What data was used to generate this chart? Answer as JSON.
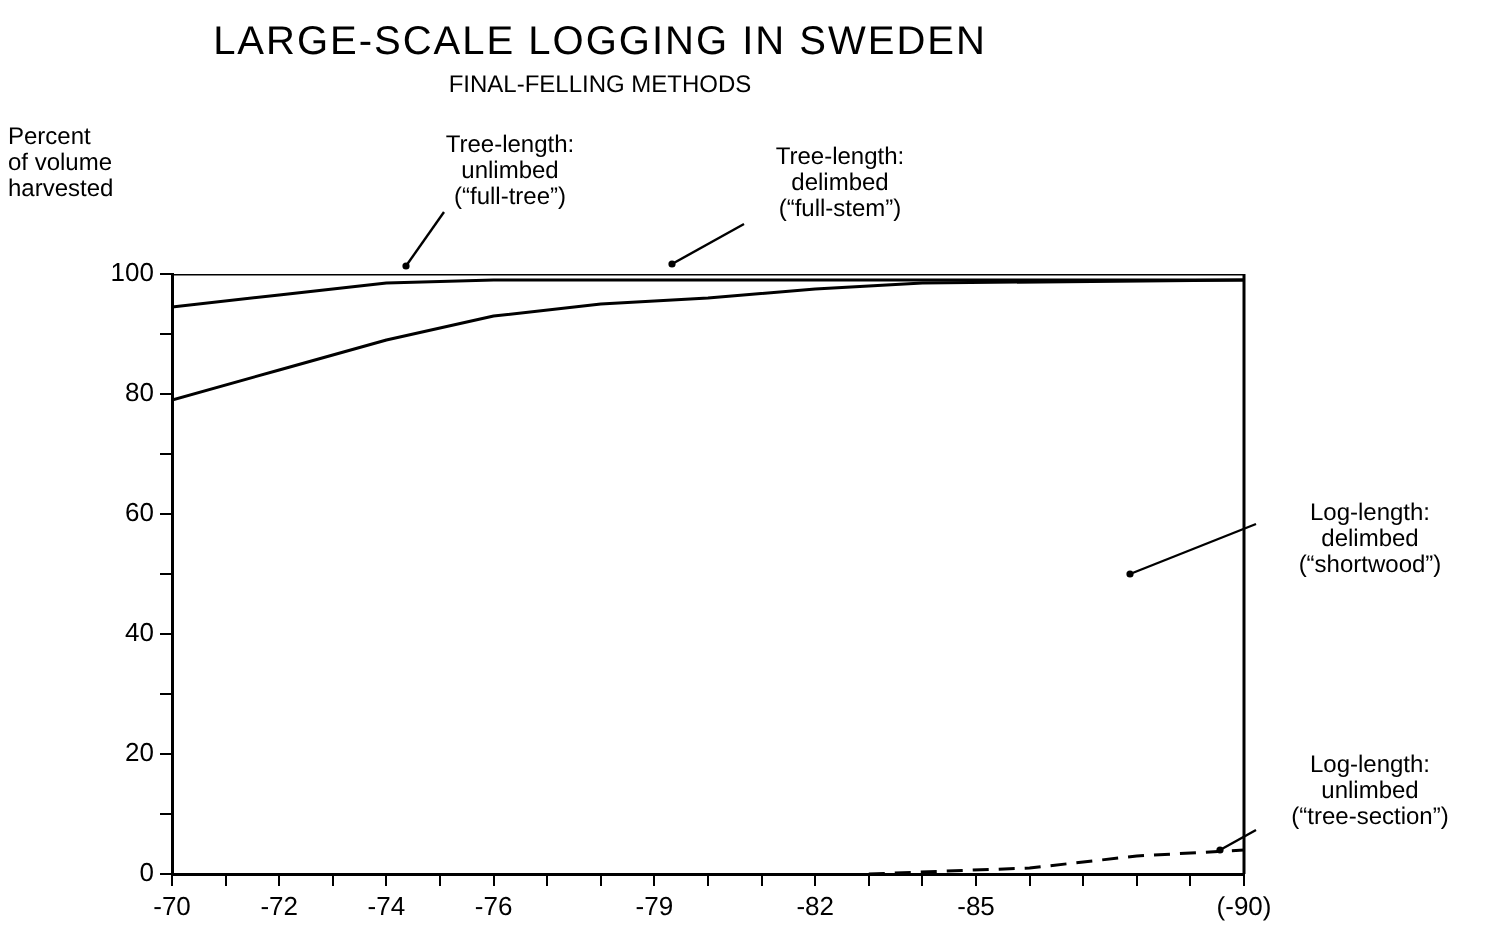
{
  "chart_data": {
    "type": "line",
    "title": "LARGE-SCALE LOGGING IN SWEDEN",
    "subtitle": "FINAL-FELLING METHODS",
    "ylabel": "Percent\nof volume\nharvested",
    "annotations": [
      "Tree-length:\nunlimbed\n(“full-tree”)",
      "Tree-length:\ndelimbed\n(“full-stem”)",
      "Log-length:\ndelimbed\n(“shortwood”)",
      "Log-length:\nunlimbed\n(“tree-section”)"
    ],
    "series": [
      {
        "color": "#000000",
        "x": [
          -70,
          -90
        ],
        "values": [
          100,
          100
        ]
      },
      {
        "color": "#000000",
        "x": [
          -70,
          -72,
          -74,
          -76,
          -80,
          -90
        ],
        "values": [
          94.5,
          96.5,
          98.5,
          99,
          99,
          99
        ]
      },
      {
        "color": "#000000",
        "x": [
          -70,
          -72,
          -74,
          -76,
          -78,
          -80,
          -82,
          -84,
          -90
        ],
        "values": [
          79,
          84,
          89,
          93,
          95,
          96,
          97.5,
          98.5,
          99
        ]
      },
      {
        "color": "#000000",
        "x": [
          -83,
          -86,
          -88,
          -90
        ],
        "values": [
          0,
          1,
          3,
          4
        ],
        "line_style": "dashed"
      }
    ],
    "xlim": [
      -70,
      -90
    ],
    "ylim": [
      0,
      100
    ],
    "xticks": [
      -70,
      {
        "value": -71,
        "label": null
      },
      -72,
      {
        "value": -73,
        "label": null
      },
      -74,
      {
        "value": -75,
        "label": null
      },
      -76,
      {
        "value": -77,
        "label": null
      },
      {
        "value": -78,
        "label": null
      },
      -79,
      {
        "value": -80,
        "label": null
      },
      {
        "value": -81,
        "label": null
      },
      -82,
      {
        "value": -83,
        "label": null
      },
      {
        "value": -84,
        "label": null
      },
      -85,
      {
        "value": -86,
        "label": null
      },
      {
        "value": -87,
        "label": null
      },
      {
        "value": -88,
        "label": null
      },
      {
        "value": -89,
        "label": null
      },
      {
        "value": -90,
        "label": "(-90)"
      }
    ],
    "yticks": [
      0,
      {
        "value": 10,
        "label": null
      },
      20,
      {
        "value": 30,
        "label": null
      },
      40,
      {
        "value": 50,
        "label": null
      },
      60,
      {
        "value": 70,
        "label": null
      },
      80,
      {
        "value": 90,
        "label": null
      },
      100
    ],
    "grid": false,
    "legend": false,
    "marker": "none",
    "line_style": "solid"
  }
}
